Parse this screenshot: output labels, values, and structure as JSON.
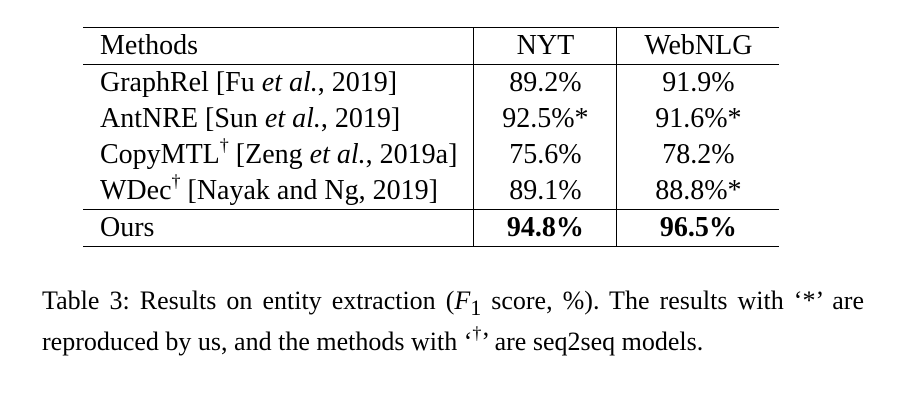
{
  "table": {
    "headers": [
      "Methods",
      "NYT",
      "WebNLG"
    ],
    "rows": [
      {
        "name": "GraphRel",
        "cite_pre": " [Fu ",
        "etal": "et al.",
        "cite_post": ", 2019]",
        "dagger": "",
        "nyt": "89.2%",
        "webnlg": "91.9%"
      },
      {
        "name": "AntNRE",
        "cite_pre": " [Sun ",
        "etal": "et al.",
        "cite_post": ", 2019]",
        "dagger": "",
        "nyt": "92.5%*",
        "webnlg": "91.6%*"
      },
      {
        "name": "CopyMTL",
        "cite_pre": " [Zeng ",
        "etal": "et al.",
        "cite_post": ", 2019a]",
        "dagger": "†",
        "nyt": "75.6%",
        "webnlg": "78.2%"
      },
      {
        "name": "WDec",
        "cite_pre": " [Nayak and Ng, 2019]",
        "etal": "",
        "cite_post": "",
        "dagger": "†",
        "nyt": "89.1%",
        "webnlg": "88.8%*"
      }
    ],
    "ours": {
      "name": "Ours",
      "nyt": "94.8%",
      "webnlg": "96.5%"
    }
  },
  "caption": {
    "label": "Table 3:",
    "text_a": " Results on entity extraction (",
    "f_letter": "F",
    "f_sub": "1",
    "text_b": " score, %).  The results with ‘*’ are reproduced by us, and the methods with ‘",
    "dagger": "†",
    "text_c": "’ are seq2seq models."
  }
}
